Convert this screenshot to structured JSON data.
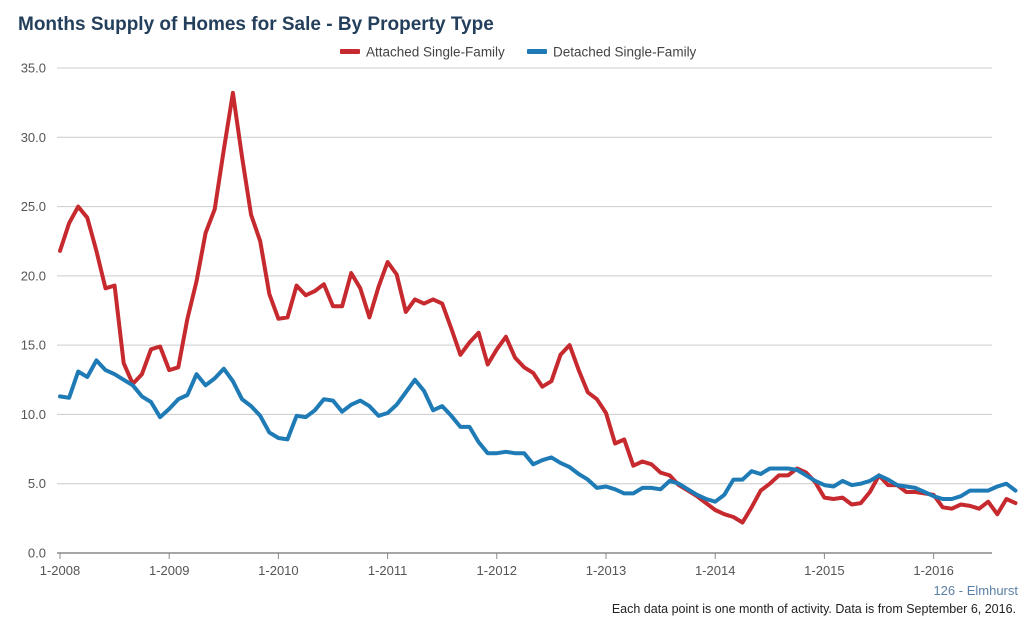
{
  "title": "Months Supply of Homes for Sale - By Property Type",
  "area_label": "126 - Elmhurst",
  "footnote": "Each data point is one month of activity. Data is from September 6, 2016.",
  "colors": {
    "attached": "#c62a2f",
    "detached": "#1f7bb6",
    "grid": "#cccccc",
    "axis": "#888888"
  },
  "chart_data": {
    "type": "line",
    "title": "Months Supply of Homes for Sale - By Property Type",
    "xlabel": "",
    "ylabel": "",
    "ylim": [
      0,
      35
    ],
    "yticks": [
      "0.0",
      "5.0",
      "10.0",
      "15.0",
      "20.0",
      "25.0",
      "30.0",
      "35.0"
    ],
    "xticks": [
      "1-2008",
      "1-2009",
      "1-2010",
      "1-2011",
      "1-2012",
      "1-2013",
      "1-2014",
      "1-2015",
      "1-2016"
    ],
    "x_start": "1-2008",
    "x_end": "8-2016",
    "grid": true,
    "legend_position": "top-center",
    "series": [
      {
        "name": "Attached Single-Family",
        "values": [
          21.8,
          23.8,
          25.0,
          24.2,
          21.8,
          19.1,
          19.3,
          13.7,
          12.2,
          12.9,
          14.7,
          14.9,
          13.2,
          13.4,
          16.9,
          19.6,
          23.1,
          24.8,
          29.1,
          33.2,
          28.6,
          24.4,
          22.5,
          18.7,
          16.9,
          17.0,
          19.3,
          18.6,
          18.9,
          19.4,
          17.8,
          17.8,
          20.2,
          19.1,
          17.0,
          19.2,
          21.0,
          20.1,
          17.4,
          18.3,
          18.0,
          18.3,
          18.0,
          16.2,
          14.3,
          15.2,
          15.9,
          13.6,
          14.7,
          15.6,
          14.1,
          13.4,
          13.0,
          12.0,
          12.4,
          14.3,
          15.0,
          13.2,
          11.6,
          11.1,
          10.1,
          7.9,
          8.2,
          6.3,
          6.6,
          6.4,
          5.8,
          5.6,
          4.9,
          4.5,
          4.1,
          3.6,
          3.1,
          2.8,
          2.6,
          2.2,
          3.3,
          4.5,
          5.0,
          5.6,
          5.6,
          6.1,
          5.8,
          5.1,
          4.0,
          3.9,
          4.0,
          3.5,
          3.6,
          4.4,
          5.6,
          4.9,
          4.9,
          4.4,
          4.4,
          4.3,
          4.2,
          3.3,
          3.2,
          3.5,
          3.4,
          3.2,
          3.7,
          2.8,
          3.9,
          3.6
        ]
      },
      {
        "name": "Detached Single-Family",
        "values": [
          11.3,
          11.2,
          13.1,
          12.7,
          13.9,
          13.2,
          12.9,
          12.5,
          12.1,
          11.3,
          10.9,
          9.8,
          10.4,
          11.1,
          11.4,
          12.9,
          12.1,
          12.6,
          13.3,
          12.4,
          11.1,
          10.6,
          9.9,
          8.7,
          8.3,
          8.2,
          9.9,
          9.8,
          10.3,
          11.1,
          11.0,
          10.2,
          10.7,
          11.0,
          10.6,
          9.9,
          10.1,
          10.7,
          11.6,
          12.5,
          11.7,
          10.3,
          10.6,
          9.9,
          9.1,
          9.1,
          8.0,
          7.2,
          7.2,
          7.3,
          7.2,
          7.2,
          6.4,
          6.7,
          6.9,
          6.5,
          6.2,
          5.7,
          5.3,
          4.7,
          4.8,
          4.6,
          4.3,
          4.3,
          4.7,
          4.7,
          4.6,
          5.2,
          5.0,
          4.6,
          4.2,
          3.9,
          3.7,
          4.2,
          5.3,
          5.3,
          5.9,
          5.7,
          6.1,
          6.1,
          6.1,
          6.0,
          5.6,
          5.2,
          4.9,
          4.8,
          5.2,
          4.9,
          5.0,
          5.2,
          5.6,
          5.3,
          4.9,
          4.8,
          4.7,
          4.4,
          4.1,
          3.9,
          3.9,
          4.1,
          4.5,
          4.5,
          4.5,
          4.8,
          5.0,
          4.5
        ]
      }
    ]
  }
}
